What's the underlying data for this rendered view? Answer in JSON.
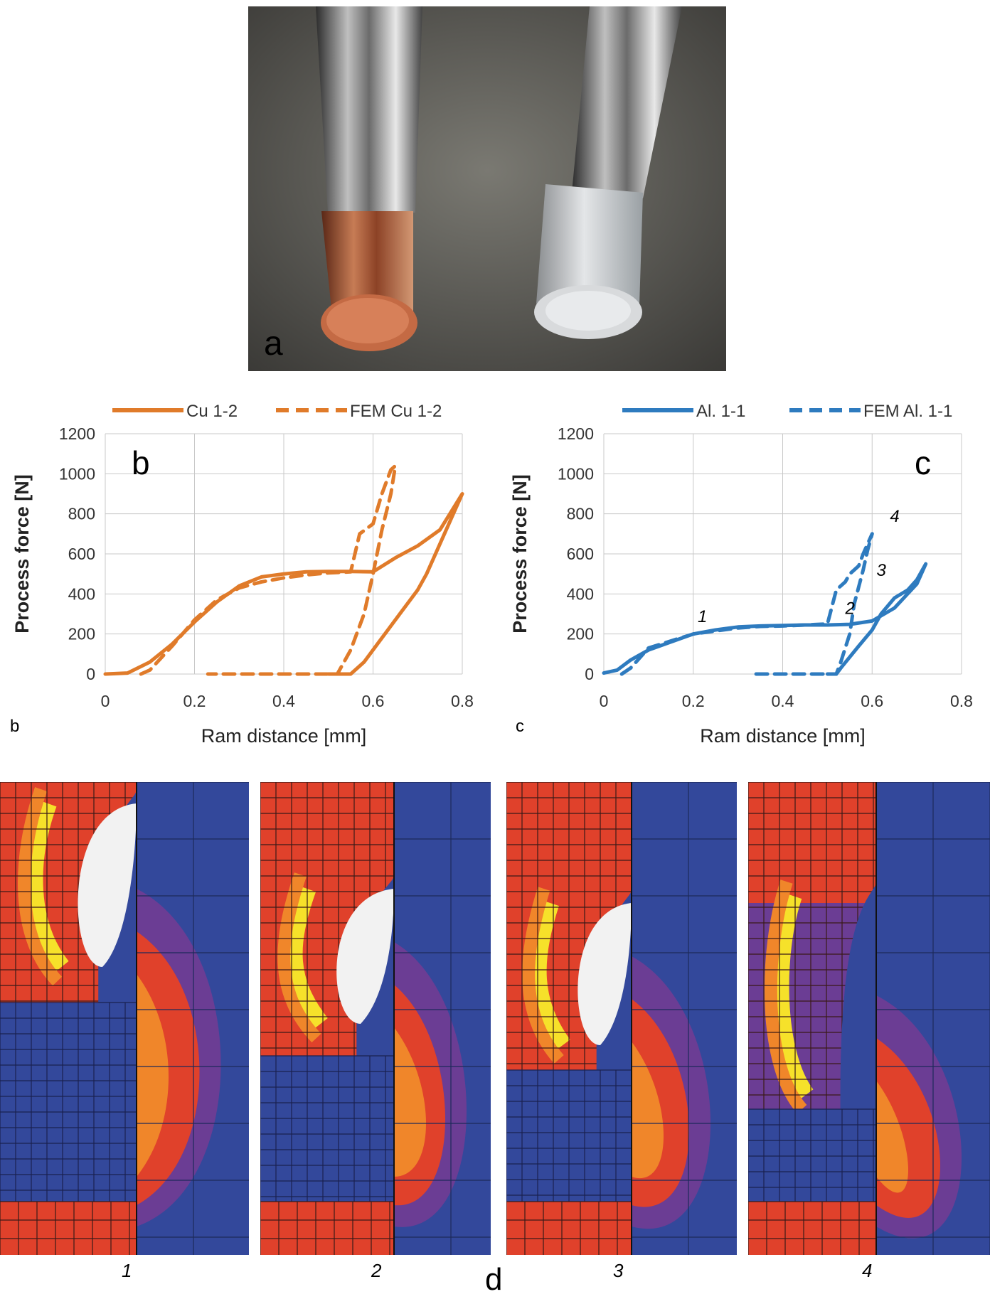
{
  "photo": {
    "label": "a",
    "bg_color": "#6f6e68",
    "copper_color": "#b86a45",
    "aluminum_color": "#c9ccd0"
  },
  "captions": {
    "b": "b",
    "c": "c",
    "d": "d"
  },
  "chart_data": [
    {
      "type": "line",
      "panel_letter": "b",
      "xlabel": "Ram distance [mm]",
      "ylabel": "Process force [N]",
      "xlim": [
        0,
        0.8
      ],
      "ylim": [
        0,
        1200
      ],
      "xticks": [
        "0",
        "0.2",
        "0.4",
        "0.6",
        "0.8"
      ],
      "yticks": [
        "0",
        "200",
        "400",
        "600",
        "800",
        "1000",
        "1200"
      ],
      "grid": true,
      "legend_position": "top",
      "color": "#e07b2a",
      "series": [
        {
          "name": "Cu 1-2",
          "style": "solid",
          "points": [
            [
              0,
              0
            ],
            [
              0.05,
              5
            ],
            [
              0.1,
              60
            ],
            [
              0.15,
              150
            ],
            [
              0.2,
              260
            ],
            [
              0.25,
              360
            ],
            [
              0.3,
              440
            ],
            [
              0.35,
              485
            ],
            [
              0.4,
              500
            ],
            [
              0.45,
              510
            ],
            [
              0.5,
              512
            ],
            [
              0.55,
              512
            ],
            [
              0.6,
              510
            ],
            [
              0.65,
              580
            ],
            [
              0.7,
              640
            ],
            [
              0.75,
              720
            ],
            [
              0.8,
              900
            ],
            [
              0.76,
              700
            ],
            [
              0.72,
              500
            ],
            [
              0.7,
              420
            ],
            [
              0.66,
              300
            ],
            [
              0.62,
              180
            ],
            [
              0.58,
              60
            ],
            [
              0.55,
              0
            ],
            [
              0.5,
              0
            ]
          ]
        },
        {
          "name": "FEM Cu 1-2",
          "style": "dashed",
          "points": [
            [
              0.08,
              0
            ],
            [
              0.1,
              20
            ],
            [
              0.15,
              140
            ],
            [
              0.2,
              270
            ],
            [
              0.25,
              370
            ],
            [
              0.3,
              430
            ],
            [
              0.35,
              460
            ],
            [
              0.4,
              480
            ],
            [
              0.45,
              495
            ],
            [
              0.5,
              505
            ],
            [
              0.55,
              510
            ],
            [
              0.57,
              700
            ],
            [
              0.6,
              750
            ],
            [
              0.62,
              900
            ],
            [
              0.64,
              1020
            ],
            [
              0.65,
              1040
            ],
            [
              0.64,
              900
            ],
            [
              0.62,
              720
            ],
            [
              0.6,
              500
            ],
            [
              0.58,
              300
            ],
            [
              0.55,
              120
            ],
            [
              0.52,
              0
            ],
            [
              0.4,
              0
            ],
            [
              0.3,
              0
            ],
            [
              0.23,
              0
            ]
          ]
        }
      ]
    },
    {
      "type": "line",
      "panel_letter": "c",
      "xlabel": "Ram distance [mm]",
      "ylabel": "Process force [N]",
      "xlim": [
        0,
        0.8
      ],
      "ylim": [
        0,
        1200
      ],
      "xticks": [
        "0",
        "0.2",
        "0.4",
        "0.6",
        "0.8"
      ],
      "yticks": [
        "0",
        "200",
        "400",
        "600",
        "800",
        "1000",
        "1200"
      ],
      "grid": true,
      "legend_position": "top",
      "color": "#2e7bbf",
      "annotations": [
        "1",
        "2",
        "3",
        "4"
      ],
      "series": [
        {
          "name": "Al. 1-1",
          "style": "solid",
          "points": [
            [
              0,
              5
            ],
            [
              0.03,
              20
            ],
            [
              0.06,
              70
            ],
            [
              0.1,
              120
            ],
            [
              0.15,
              160
            ],
            [
              0.2,
              200
            ],
            [
              0.25,
              220
            ],
            [
              0.3,
              235
            ],
            [
              0.35,
              240
            ],
            [
              0.4,
              242
            ],
            [
              0.45,
              245
            ],
            [
              0.5,
              245
            ],
            [
              0.55,
              248
            ],
            [
              0.6,
              265
            ],
            [
              0.65,
              330
            ],
            [
              0.7,
              450
            ],
            [
              0.72,
              550
            ],
            [
              0.7,
              470
            ],
            [
              0.68,
              420
            ],
            [
              0.65,
              380
            ],
            [
              0.62,
              300
            ],
            [
              0.6,
              220
            ],
            [
              0.57,
              140
            ],
            [
              0.53,
              30
            ],
            [
              0.52,
              0
            ],
            [
              0.5,
              0
            ]
          ]
        },
        {
          "name": "FEM Al. 1-1",
          "style": "dashed",
          "points": [
            [
              0.04,
              0
            ],
            [
              0.06,
              30
            ],
            [
              0.1,
              130
            ],
            [
              0.15,
              165
            ],
            [
              0.2,
              200
            ],
            [
              0.25,
              215
            ],
            [
              0.3,
              230
            ],
            [
              0.35,
              238
            ],
            [
              0.4,
              240
            ],
            [
              0.45,
              245
            ],
            [
              0.5,
              250
            ],
            [
              0.52,
              420
            ],
            [
              0.54,
              460
            ],
            [
              0.55,
              500
            ],
            [
              0.57,
              540
            ],
            [
              0.58,
              600
            ],
            [
              0.6,
              700
            ],
            [
              0.59,
              620
            ],
            [
              0.58,
              520
            ],
            [
              0.56,
              350
            ],
            [
              0.55,
              200
            ],
            [
              0.53,
              60
            ],
            [
              0.52,
              0
            ],
            [
              0.45,
              0
            ],
            [
              0.33,
              0
            ]
          ]
        }
      ]
    }
  ],
  "simulations": {
    "labels": [
      "1",
      "2",
      "3",
      "4"
    ],
    "colors": {
      "red": "#e0412b",
      "orange": "#f0862a",
      "yellow": "#f6e12a",
      "blue": "#33489b",
      "purple": "#6b3d94",
      "magenta": "#a13a6c",
      "gap": "#f2f2f2"
    }
  }
}
